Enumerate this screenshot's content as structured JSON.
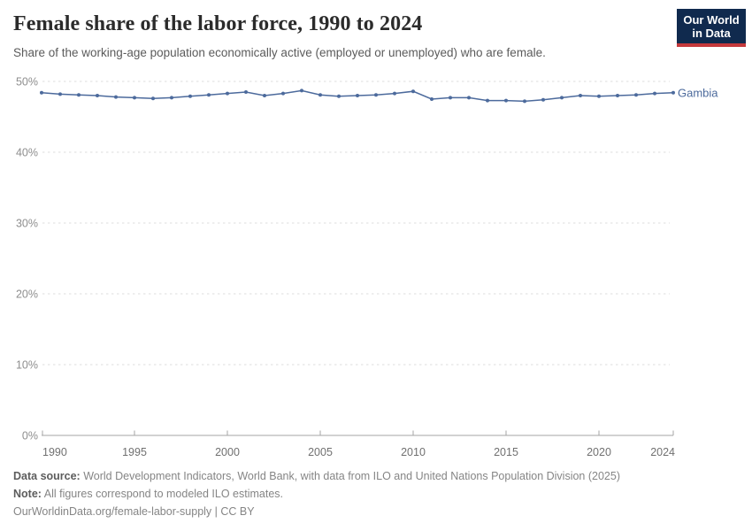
{
  "header": {
    "title": "Female share of the labor force, 1990 to 2024",
    "subtitle": "Share of the working-age population economically active (employed or unemployed) who are female.",
    "logo": {
      "line1": "Our World",
      "line2": "in Data",
      "bg_color": "#102a4e",
      "accent_color": "#c5393c"
    }
  },
  "chart_data": {
    "type": "line",
    "title": "Female share of the labor force, 1990 to 2024",
    "xlabel": "",
    "ylabel": "",
    "ylim": [
      0,
      50
    ],
    "yticks": [
      0,
      10,
      20,
      30,
      40,
      50
    ],
    "ytick_suffix": "%",
    "xticks": [
      1990,
      1995,
      2000,
      2005,
      2010,
      2015,
      2020,
      2024
    ],
    "grid": "horizontal-dashed",
    "legend_position": "right-of-line-end",
    "x": [
      1990,
      1991,
      1992,
      1993,
      1994,
      1995,
      1996,
      1997,
      1998,
      1999,
      2000,
      2001,
      2002,
      2003,
      2004,
      2005,
      2006,
      2007,
      2008,
      2009,
      2010,
      2011,
      2012,
      2013,
      2014,
      2015,
      2016,
      2017,
      2018,
      2019,
      2020,
      2021,
      2022,
      2023,
      2024
    ],
    "series": [
      {
        "name": "Gambia",
        "color": "#4C6A9C",
        "values": [
          48.4,
          48.2,
          48.1,
          48.0,
          47.8,
          47.7,
          47.6,
          47.7,
          47.9,
          48.1,
          48.3,
          48.5,
          48.0,
          48.3,
          48.7,
          48.1,
          47.9,
          48.0,
          48.1,
          48.3,
          48.6,
          47.5,
          47.7,
          47.7,
          47.3,
          47.3,
          47.2,
          47.4,
          47.7,
          48.0,
          47.9,
          48.0,
          48.1,
          48.3,
          48.4
        ]
      }
    ]
  },
  "footer": {
    "source_label": "Data source:",
    "source_text": " World Development Indicators, World Bank, with data from ILO and United Nations Population Division (2025)",
    "note_label": "Note:",
    "note_text": " All figures correspond to modeled ILO estimates.",
    "link_text": "OurWorldinData.org/female-labor-supply | CC BY"
  }
}
